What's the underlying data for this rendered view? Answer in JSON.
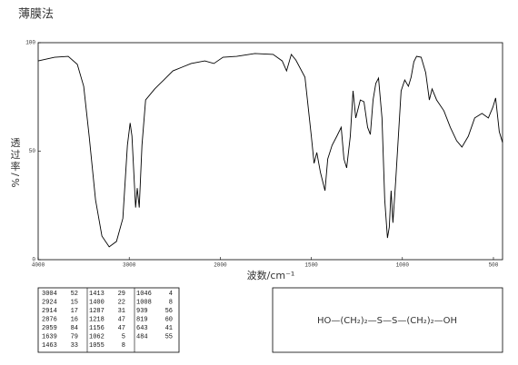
{
  "chart_data": {
    "type": "line",
    "title": "薄膜法",
    "x_label": "波数/cm⁻¹",
    "y_label": "透过率/%",
    "x": [
      4000,
      3820,
      3670,
      3570,
      3500,
      3440,
      3370,
      3300,
      3220,
      3140,
      3070,
      3020,
      2990,
      2970,
      2930,
      2912,
      2890,
      2860,
      2820,
      2720,
      2670,
      2620,
      2520,
      2420,
      2320,
      2170,
      2070,
      1985,
      1910,
      1810,
      1710,
      1660,
      1636,
      1610,
      1585,
      1535,
      1500,
      1485,
      1470,
      1450,
      1425,
      1410,
      1386,
      1360,
      1336,
      1321,
      1306,
      1286,
      1271,
      1256,
      1231,
      1211,
      1191,
      1176,
      1161,
      1146,
      1131,
      1112,
      1097,
      1082,
      1072,
      1062,
      1052,
      1037,
      1022,
      1007,
      987,
      967,
      952,
      937,
      922,
      897,
      872,
      852,
      837,
      812,
      772,
      737,
      702,
      673,
      638,
      603,
      563,
      528,
      503,
      488,
      468,
      450
    ],
    "values": [
      91.6,
      93.3,
      93.7,
      90,
      79.9,
      56.9,
      27.6,
      10.9,
      5.9,
      8.4,
      19,
      52.7,
      63,
      57,
      24,
      33,
      24,
      52.7,
      73.6,
      78.7,
      80.8,
      82.8,
      87,
      88.7,
      90.4,
      91.6,
      90.4,
      93.3,
      93.7,
      95,
      94.6,
      91.6,
      87,
      94.6,
      92,
      84.1,
      56.9,
      44.4,
      49.4,
      40.2,
      31.8,
      46.4,
      52.7,
      56.9,
      61,
      46.4,
      42.3,
      56.9,
      77.8,
      65.3,
      73.6,
      72.8,
      61,
      57.7,
      73.6,
      81.2,
      83.7,
      65.3,
      27.6,
      10,
      15,
      31.8,
      17,
      36,
      56.9,
      77.8,
      82.8,
      79.9,
      84.1,
      91.2,
      93.7,
      93.3,
      86.2,
      73.6,
      78.7,
      73.6,
      68.6,
      61,
      54.8,
      51.9,
      56.9,
      65.3,
      67.4,
      65.3,
      70.3,
      74.5,
      59,
      54
    ],
    "color": "#000000",
    "xlim": [
      4000,
      450
    ],
    "xticks": [
      4000,
      3000,
      2000,
      1500,
      1000,
      500
    ],
    "x_scale_break": 2000,
    "x_expansion_below_break": 2,
    "ylim": [
      0,
      100
    ],
    "yticks": [
      0,
      50,
      100
    ],
    "grid": false
  },
  "peak_table": [
    [
      [
        3004,
        52
      ],
      [
        2924,
        15
      ],
      [
        2914,
        17
      ],
      [
        2876,
        16
      ],
      [
        2059,
        84
      ],
      [
        1639,
        79
      ],
      [
        1463,
        33
      ]
    ],
    [
      [
        1413,
        29
      ],
      [
        1400,
        22
      ],
      [
        1287,
        31
      ],
      [
        1218,
        47
      ],
      [
        1156,
        47
      ],
      [
        1062,
        5
      ],
      [
        1055,
        8
      ]
    ],
    [
      [
        1046,
        4
      ],
      [
        1008,
        8
      ],
      [
        939,
        56
      ],
      [
        819,
        60
      ],
      [
        643,
        41
      ],
      [
        484,
        55
      ]
    ]
  ],
  "structure": "HO—(CH₂)₂—S—S—(CH₂)₂—OH"
}
